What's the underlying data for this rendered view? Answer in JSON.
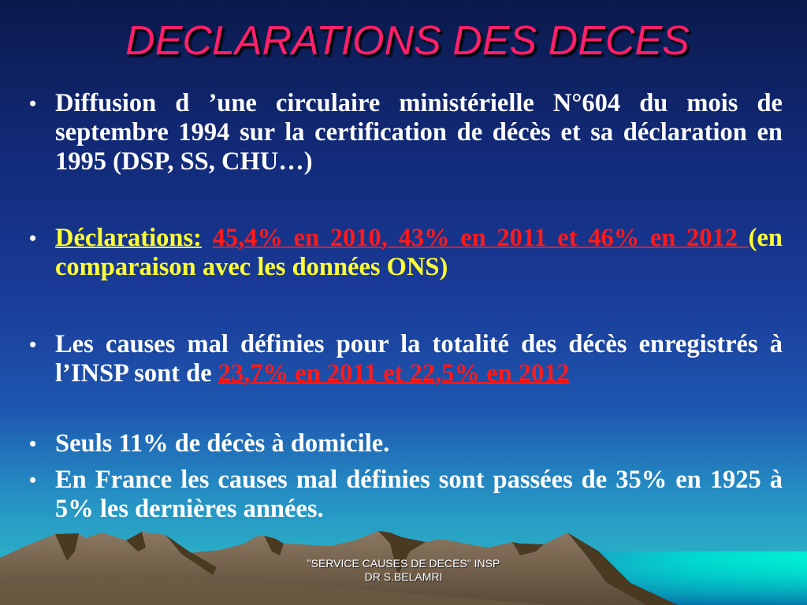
{
  "slide": {
    "title": "DECLARATIONS DES DECES",
    "colors": {
      "title": "#ff1f6a",
      "body_text": "#ffffff",
      "highlight_red": "#ff1a1a",
      "highlight_yellow": "#ffff33",
      "sea": "#00e8d0",
      "mountain": "#8a7560"
    },
    "bullets": [
      {
        "text": "Diffusion d ’une circulaire ministérielle N°604 du mois de septembre 1994 sur la certification de décès et sa déclaration  en 1995 (DSP, SS, CHU…)"
      },
      {
        "label": "Déclarations:",
        "highlight": "45,4% en 2010, 43% en 2011 et 46% en 2012 ",
        "rest": "(en comparaison avec les données ONS)"
      },
      {
        "text": "Les causes mal définies pour la totalité des décès enregistrés à l’INSP sont de ",
        "highlight": "23,7% en 2011 et 22,5% en 2012"
      },
      {
        "text": "Seuls 11% de décès à domicile."
      },
      {
        "text": "En France les causes mal définies sont passées de 35% en 1925 à 5% les dernières années."
      }
    ],
    "bullet_glyph": "•",
    "footer": {
      "line1": "\"SERVICE CAUSES DE DECES\" INSP",
      "line2": "DR S.BELAMRI"
    }
  }
}
